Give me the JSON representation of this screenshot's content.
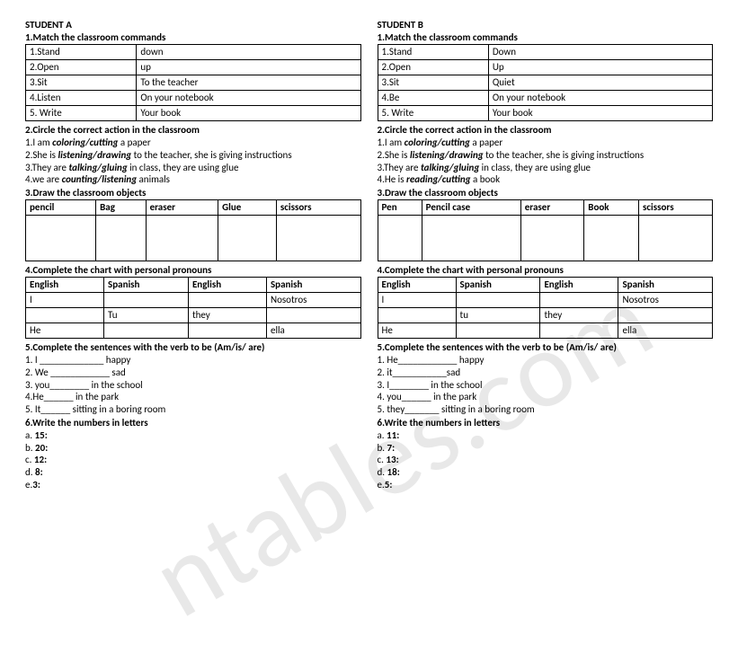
{
  "studentA": {
    "title": "STUDENT A",
    "q1": {
      "heading": "1.Match the classroom commands",
      "rows": [
        [
          "1.Stand",
          "down"
        ],
        [
          "2.Open",
          "up"
        ],
        [
          "3.Sit",
          "To the teacher"
        ],
        [
          "4.Listen",
          "On your notebook"
        ],
        [
          "5. Write",
          "Your book"
        ]
      ]
    },
    "q2": {
      "heading": "2.Circle the correct action in the classroom",
      "lines": [
        {
          "pre": "1.I am ",
          "bi": "coloring/cutting",
          "post": "  a paper"
        },
        {
          "pre": "2.She is ",
          "bi": "listening/drawing",
          "post": " to the teacher, she is giving instructions"
        },
        {
          "pre": "3.They are ",
          "bi": "talking/gluing",
          "post": " in class, they are using glue"
        },
        {
          "pre": "4.we are ",
          "bi": "counting/listening",
          "post": " animals"
        }
      ]
    },
    "q3": {
      "heading": "3.Draw the classroom objects",
      "headers": [
        "pencil",
        "Bag",
        "eraser",
        "Glue",
        "scissors"
      ]
    },
    "q4": {
      "heading": "4.Complete the chart with personal pronouns",
      "headers": [
        "English",
        "Spanish",
        "English",
        "Spanish"
      ],
      "rows": [
        [
          "I",
          "",
          "",
          "Nosotros"
        ],
        [
          "",
          "Tu",
          "they",
          ""
        ],
        [
          "He",
          "",
          "",
          "ella"
        ]
      ]
    },
    "q5": {
      "heading": "5.Complete the sentences with the verb to be (Am/is/ are)",
      "lines": [
        "1. I _____________ happy",
        "2. We ____________  sad",
        "3. you________ in the school",
        "4.He______ in the park",
        "5. It______ sitting in a boring room"
      ]
    },
    "q6": {
      "heading": "6.Write the numbers in letters",
      "items": [
        {
          "l": "a. ",
          "n": "15:"
        },
        {
          "l": "b. ",
          "n": "20:"
        },
        {
          "l": "c. ",
          "n": "12:"
        },
        {
          "l": "d. ",
          "n": "8:"
        },
        {
          "l": "e.",
          "n": "3:"
        }
      ]
    }
  },
  "studentB": {
    "title": "STUDENT B",
    "q1": {
      "heading": "1.Match the classroom commands",
      "rows": [
        [
          "1.Stand",
          "Down"
        ],
        [
          "2.Open",
          "Up"
        ],
        [
          "3.Sit",
          "Quiet"
        ],
        [
          "4.Be",
          "On your notebook"
        ],
        [
          "5. Write",
          "Your book"
        ]
      ]
    },
    "q2": {
      "heading": "2.Circle the correct action in the classroom",
      "lines": [
        {
          "pre": "1.I am ",
          "bi": "coloring/cutting",
          "post": "  a paper"
        },
        {
          "pre": "2.She is ",
          "bi": "listening/drawing",
          "post": " to the teacher, she is giving instructions"
        },
        {
          "pre": "3.They are ",
          "bi": "talking/gluing",
          "post": " in class, they are using glue"
        },
        {
          "pre": "4.He is ",
          "bi": "reading/cutting",
          "post": " a book"
        }
      ]
    },
    "q3": {
      "heading": " 3.Draw the classroom objects",
      "headers": [
        "Pen",
        "Pencil case",
        "eraser",
        "Book",
        "scissors"
      ]
    },
    "q4": {
      "heading": "4.Complete the chart with personal pronouns",
      "headers": [
        "English",
        "Spanish",
        "English",
        "Spanish"
      ],
      "rows": [
        [
          "I",
          "",
          "",
          "Nosotros"
        ],
        [
          "",
          "tu",
          "they",
          ""
        ],
        [
          "He",
          "",
          "",
          "ella"
        ]
      ]
    },
    "q5": {
      "heading": "5.Complete the sentences with the verb to be (Am/is/ are)",
      "lines": [
        "1. He____________ happy",
        "2. it___________sad",
        "3. I________ in the school",
        "4. you______ in the park",
        "5. they_______ sitting in a boring room"
      ]
    },
    "q6": {
      "heading": "6.Write the numbers in letters",
      "items": [
        {
          "l": "a. ",
          "n": "11:"
        },
        {
          "l": "b. ",
          "n": "7:"
        },
        {
          "l": "c. ",
          "n": "13:"
        },
        {
          "l": "d. ",
          "n": "18:"
        },
        {
          "l": "e.",
          "n": "5:"
        }
      ]
    }
  }
}
